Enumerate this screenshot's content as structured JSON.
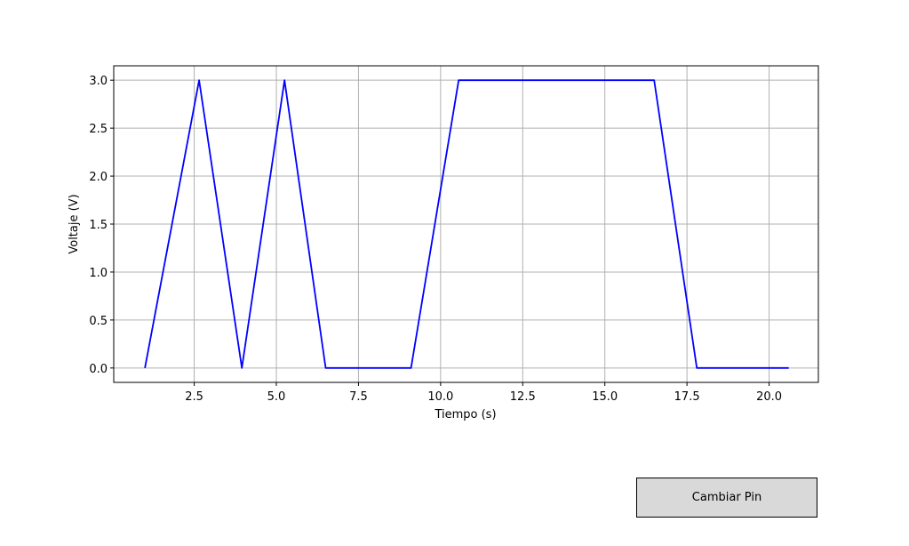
{
  "chart_data": {
    "type": "line",
    "xlabel": "Tiempo (s)",
    "ylabel": "Voltaje (V)",
    "xlim": [
      0.05,
      21.5
    ],
    "ylim": [
      -0.15,
      3.15
    ],
    "xticks": [
      2.5,
      5.0,
      7.5,
      10.0,
      12.5,
      15.0,
      17.5,
      20.0
    ],
    "xtick_labels": [
      "2.5",
      "5.0",
      "7.5",
      "10.0",
      "12.5",
      "15.0",
      "17.5",
      "20.0"
    ],
    "yticks": [
      0.0,
      0.5,
      1.0,
      1.5,
      2.0,
      2.5,
      3.0
    ],
    "ytick_labels": [
      "0.0",
      "0.5",
      "1.0",
      "1.5",
      "2.0",
      "2.5",
      "3.0"
    ],
    "grid": true,
    "series": [
      {
        "color": "#0000ff",
        "x": [
          1.0,
          2.65,
          3.95,
          5.25,
          6.5,
          9.1,
          10.55,
          16.5,
          17.8,
          20.6
        ],
        "y": [
          0.0,
          3.0,
          0.0,
          3.0,
          0.0,
          0.0,
          3.0,
          3.0,
          0.0,
          0.0
        ]
      }
    ]
  },
  "button": {
    "label": "Cambiar Pin"
  }
}
